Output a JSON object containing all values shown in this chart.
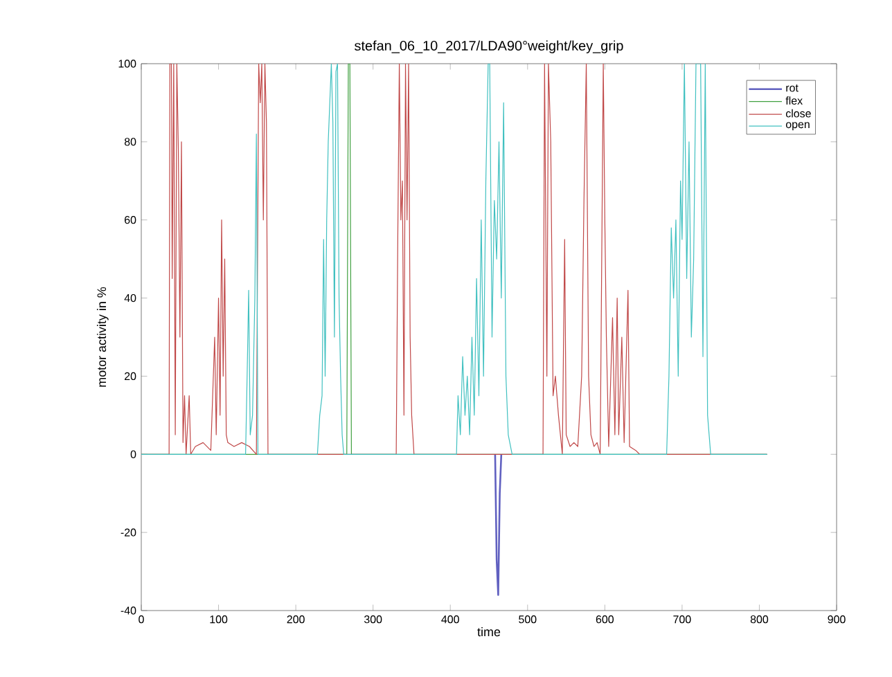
{
  "chart_data": {
    "type": "line",
    "title": "stefan_06_10_2017/LDA90°weight/key_grip",
    "xlabel": "time",
    "ylabel": "motor activity in %",
    "xlim": [
      0,
      900
    ],
    "ylim": [
      -40,
      100
    ],
    "xticks": [
      0,
      100,
      200,
      300,
      400,
      500,
      600,
      700,
      800,
      900
    ],
    "yticks": [
      -40,
      -20,
      0,
      20,
      40,
      60,
      80,
      100
    ],
    "legend": "top right",
    "series": [
      {
        "name": "rot",
        "color": "#6060c0",
        "x": [
          458,
          460,
          462,
          464,
          466
        ],
        "values": [
          0,
          -27,
          -36,
          -10,
          0
        ]
      },
      {
        "name": "flex",
        "color": "#40a040",
        "x": [
          0,
          266,
          268,
          270,
          272,
          810
        ],
        "values": [
          0,
          0,
          100,
          100,
          0,
          0
        ]
      },
      {
        "name": "close",
        "color": "#c04848",
        "x": [
          0,
          36,
          37,
          39,
          40,
          42,
          44,
          46,
          48,
          50,
          52,
          54,
          56,
          58,
          62,
          64,
          70,
          80,
          90,
          95,
          97,
          100,
          102,
          104,
          106,
          108,
          110,
          112,
          120,
          130,
          140,
          149,
          152,
          154,
          156,
          158,
          160,
          162,
          164,
          330,
          332,
          334,
          336,
          338,
          340,
          342,
          344,
          346,
          348,
          350,
          353,
          520,
          522,
          525,
          527,
          530,
          533,
          536,
          540,
          545,
          548,
          550,
          555,
          560,
          565,
          570,
          573,
          576,
          579,
          582,
          586,
          590,
          594,
          598,
          600,
          602,
          605,
          610,
          613,
          616,
          618,
          622,
          625,
          630,
          632,
          640,
          645,
          810
        ],
        "values": [
          0,
          0,
          100,
          100,
          45,
          100,
          5,
          100,
          78,
          30,
          80,
          3,
          15,
          0,
          15,
          0,
          2,
          3,
          1,
          30,
          5,
          40,
          10,
          60,
          20,
          50,
          5,
          3,
          2,
          3,
          2,
          0,
          100,
          90,
          100,
          60,
          100,
          85,
          0,
          0,
          55,
          100,
          60,
          70,
          10,
          100,
          60,
          100,
          30,
          10,
          0,
          0,
          100,
          20,
          100,
          80,
          15,
          20,
          10,
          0,
          55,
          5,
          2,
          3,
          2,
          20,
          65,
          100,
          20,
          5,
          2,
          3,
          0,
          100,
          60,
          30,
          2,
          35,
          5,
          40,
          5,
          30,
          3,
          42,
          2,
          1,
          0,
          0
        ]
      },
      {
        "name": "open",
        "color": "#40c0c0",
        "x": [
          0,
          135,
          137,
          139,
          141,
          144,
          147,
          149,
          151,
          228,
          231,
          234,
          236,
          238,
          240,
          242,
          244,
          246,
          248,
          250,
          252,
          254,
          256,
          258,
          260,
          262,
          408,
          410,
          413,
          416,
          419,
          422,
          425,
          428,
          431,
          434,
          437,
          440,
          443,
          446,
          449,
          451,
          454,
          457,
          460,
          463,
          466,
          469,
          472,
          475,
          480,
          680,
          683,
          686,
          689,
          692,
          695,
          698,
          700,
          703,
          706,
          709,
          712,
          715,
          718,
          721,
          724,
          727,
          730,
          733,
          737,
          810
        ],
        "values": [
          0,
          0,
          20,
          42,
          5,
          10,
          40,
          82,
          0,
          0,
          10,
          15,
          55,
          20,
          60,
          80,
          90,
          100,
          85,
          30,
          98,
          100,
          40,
          20,
          5,
          0,
          0,
          15,
          5,
          25,
          10,
          20,
          5,
          30,
          10,
          45,
          15,
          60,
          20,
          70,
          100,
          100,
          30,
          65,
          50,
          80,
          40,
          90,
          20,
          5,
          0,
          0,
          20,
          58,
          40,
          60,
          20,
          70,
          55,
          100,
          45,
          80,
          30,
          50,
          100,
          100,
          100,
          25,
          100,
          10,
          0,
          0
        ]
      }
    ]
  }
}
